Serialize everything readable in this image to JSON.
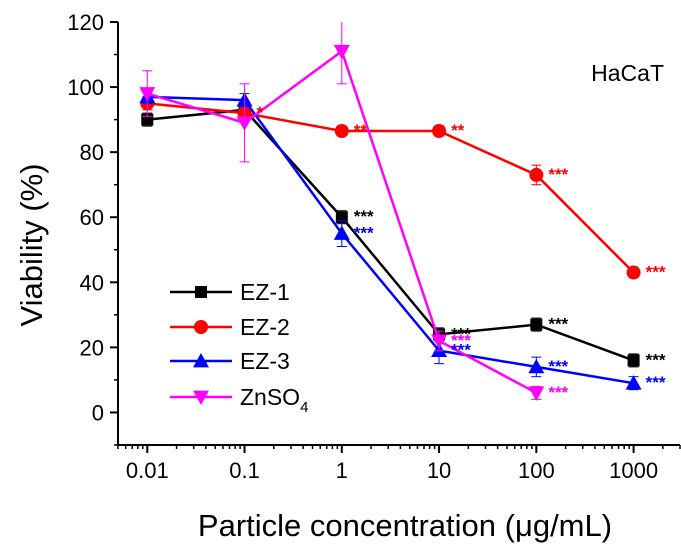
{
  "chart_data": {
    "type": "line",
    "panel_label": "HaCaT",
    "xlabel_main": "Particle concentration (",
    "xlabel_unit": "μg/mL)",
    "ylabel": "Viability (%)",
    "x_scale": "log",
    "xlim": [
      0.005,
      3000
    ],
    "ylim": [
      -10,
      120
    ],
    "x_ticks": [
      0.01,
      0.1,
      1,
      10,
      100,
      1000
    ],
    "x_tick_labels": [
      "0.01",
      "0.1",
      "1",
      "10",
      "100",
      "1000"
    ],
    "y_ticks": [
      0,
      20,
      40,
      60,
      80,
      100,
      120
    ],
    "y_tick_labels": [
      "0",
      "20",
      "40",
      "60",
      "80",
      "100",
      "120"
    ],
    "grid": false,
    "legend_position": "bottom-left",
    "series": [
      {
        "name": "EZ-1",
        "legend_main": "EZ-1",
        "legend_sub": "",
        "color": "#000000",
        "marker": "square",
        "x": [
          0.01,
          0.1,
          1,
          10,
          100,
          1000
        ],
        "y": [
          90,
          93,
          60,
          24,
          27,
          16
        ],
        "err": [
          2,
          2,
          2,
          2,
          2,
          2
        ],
        "annotations": [
          {
            "x": 1,
            "y": 60,
            "text": "***"
          },
          {
            "x": 10,
            "y": 24,
            "text": "***"
          },
          {
            "x": 100,
            "y": 27,
            "text": "***"
          },
          {
            "x": 1000,
            "y": 16,
            "text": "***"
          }
        ]
      },
      {
        "name": "EZ-2",
        "legend_main": "EZ-2",
        "legend_sub": "",
        "color": "#ff0000",
        "marker": "circle",
        "x": [
          0.01,
          0.1,
          1,
          10,
          100,
          1000
        ],
        "y": [
          95,
          92,
          86.5,
          86.5,
          73,
          43
        ],
        "err": [
          2,
          2,
          1.5,
          1.5,
          3,
          1.5
        ],
        "annotations": [
          {
            "x": 0.1,
            "y": 92,
            "text": "*"
          },
          {
            "x": 1,
            "y": 86.5,
            "text": "**"
          },
          {
            "x": 10,
            "y": 86.5,
            "text": "**"
          },
          {
            "x": 100,
            "y": 73,
            "text": "***"
          },
          {
            "x": 1000,
            "y": 43,
            "text": "***"
          }
        ]
      },
      {
        "name": "EZ-3",
        "legend_main": "EZ-3",
        "legend_sub": "",
        "color": "#0000ff",
        "marker": "triangle-up",
        "x": [
          0.01,
          0.1,
          1,
          10,
          100,
          1000
        ],
        "y": [
          97,
          96,
          55,
          19,
          14,
          9
        ],
        "err": [
          2,
          2,
          4,
          4,
          3,
          2
        ],
        "annotations": [
          {
            "x": 1,
            "y": 55,
            "text": "***"
          },
          {
            "x": 10,
            "y": 19,
            "text": "***"
          },
          {
            "x": 100,
            "y": 14,
            "text": "***"
          },
          {
            "x": 1000,
            "y": 9,
            "text": "***"
          }
        ]
      },
      {
        "name": "ZnSO4",
        "legend_main": "ZnSO",
        "legend_sub": "4",
        "color": "#ff00ff",
        "marker": "triangle-down",
        "x": [
          0.01,
          0.1,
          1,
          10,
          100
        ],
        "y": [
          98,
          89,
          111,
          22,
          6
        ],
        "err": [
          7,
          12,
          10,
          3,
          2
        ],
        "annotations": [
          {
            "x": 10,
            "y": 22,
            "text": "***"
          },
          {
            "x": 100,
            "y": 6,
            "text": "***"
          }
        ]
      }
    ]
  }
}
